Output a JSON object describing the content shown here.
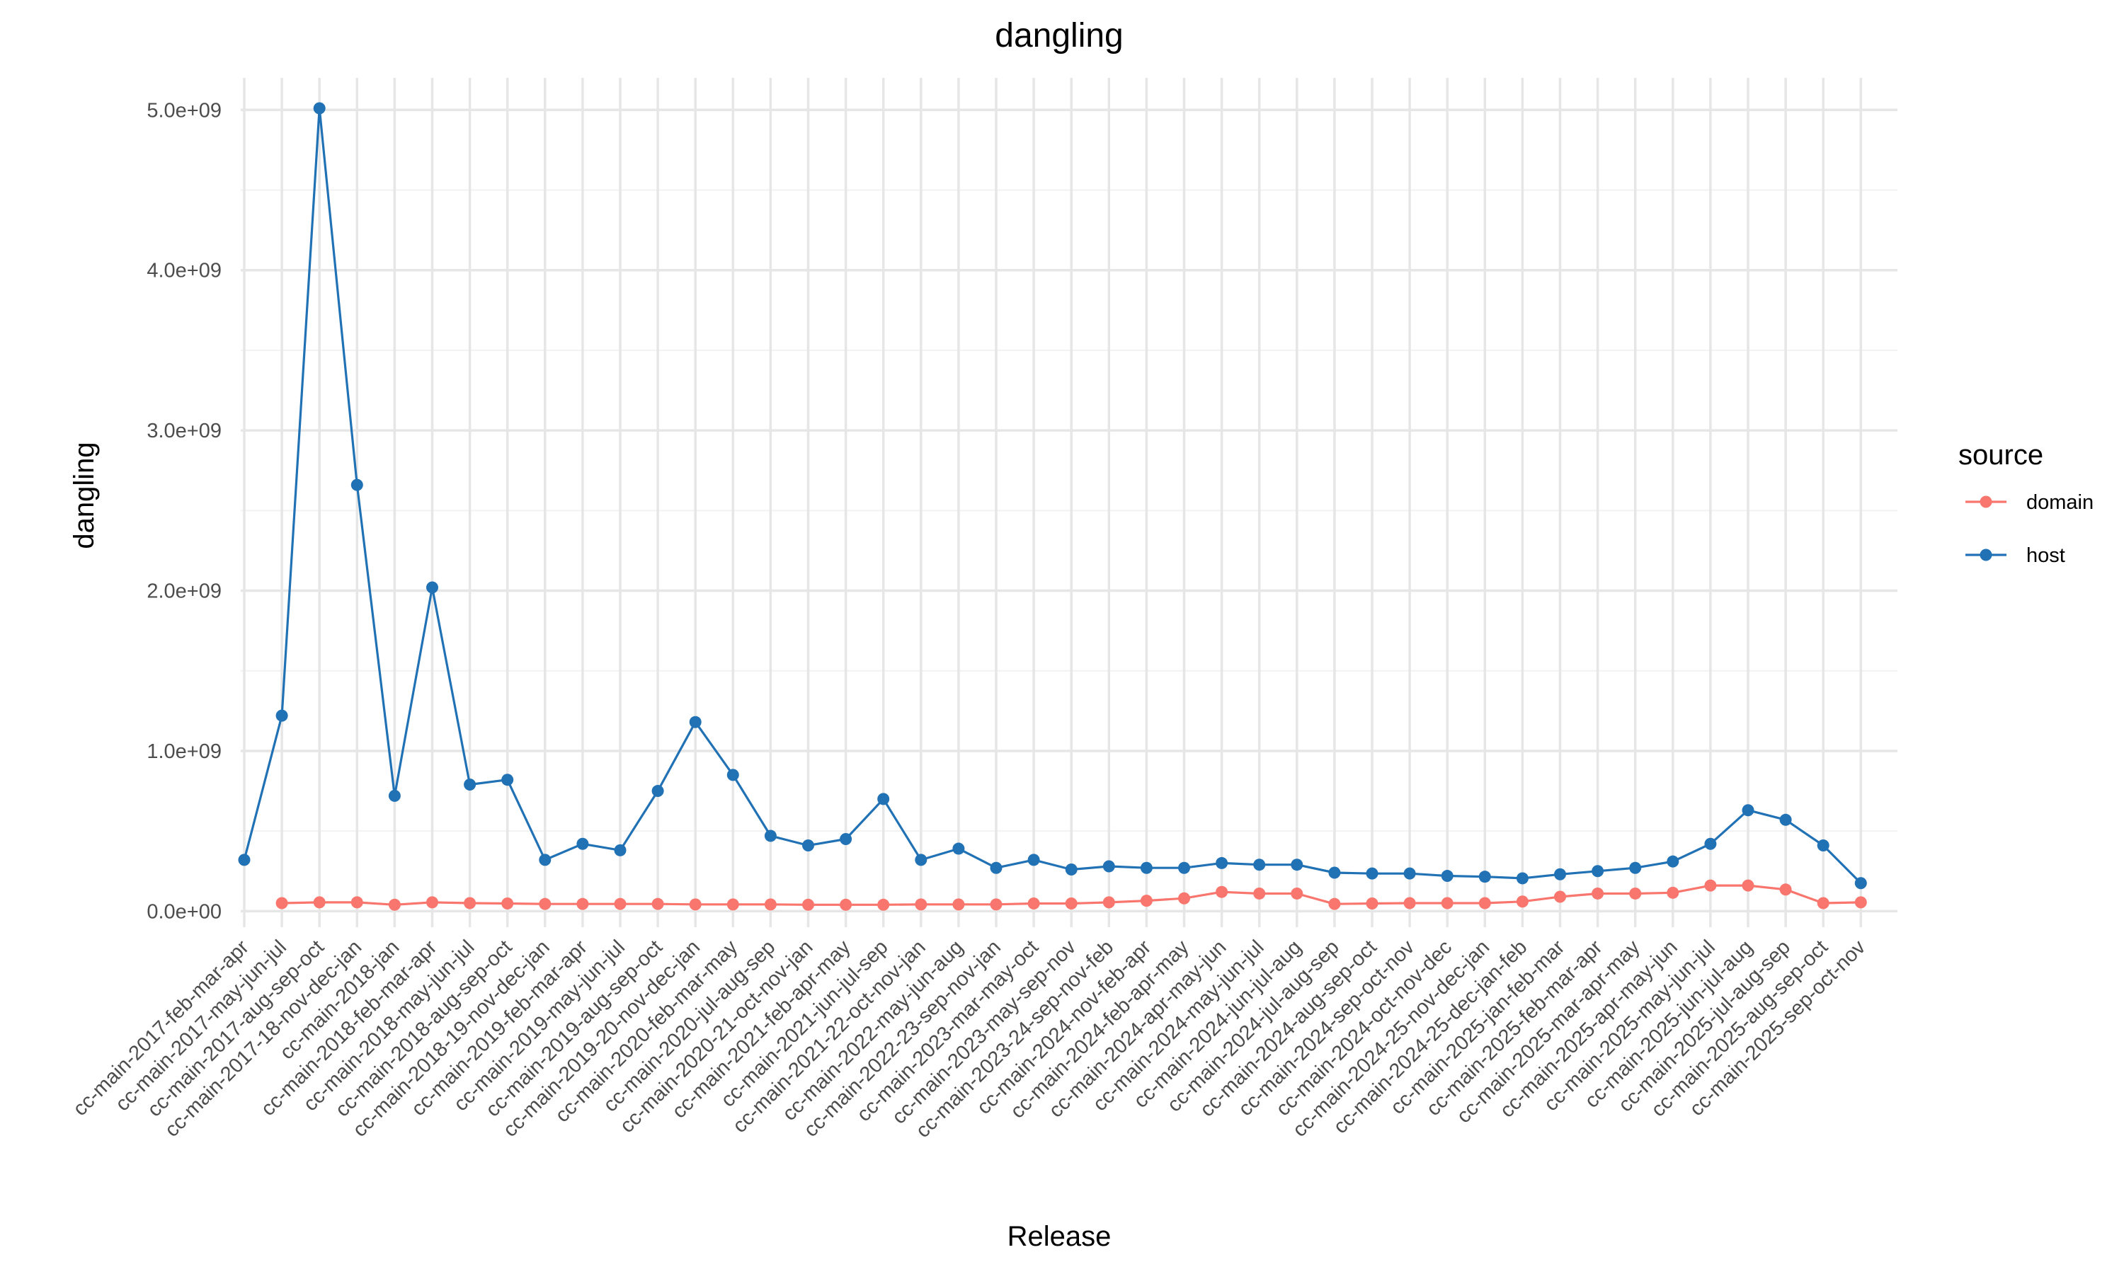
{
  "chart_data": {
    "type": "line",
    "title": "dangling",
    "xlabel": "Release",
    "ylabel": "dangling",
    "ylim": [
      -100000000,
      5200000000
    ],
    "yticks": [
      0,
      1000000000,
      2000000000,
      3000000000,
      4000000000,
      5000000000
    ],
    "ytick_labels": [
      "0.0e+00",
      "1.0e+09",
      "2.0e+09",
      "3.0e+09",
      "4.0e+09",
      "5.0e+09"
    ],
    "grid": true,
    "legend_title": "source",
    "legend_position": "right",
    "categories": [
      "cc-main-2017-feb-mar-apr",
      "cc-main-2017-may-jun-jul",
      "cc-main-2017-aug-sep-oct",
      "cc-main-2017-18-nov-dec-jan",
      "cc-main-2018-jan",
      "cc-main-2018-feb-mar-apr",
      "cc-main-2018-may-jun-jul",
      "cc-main-2018-aug-sep-oct",
      "cc-main-2018-19-nov-dec-jan",
      "cc-main-2019-feb-mar-apr",
      "cc-main-2019-may-jun-jul",
      "cc-main-2019-aug-sep-oct",
      "cc-main-2019-20-nov-dec-jan",
      "cc-main-2020-feb-mar-may",
      "cc-main-2020-jul-aug-sep",
      "cc-main-2020-21-oct-nov-jan",
      "cc-main-2021-feb-apr-may",
      "cc-main-2021-jun-jul-sep",
      "cc-main-2021-22-oct-nov-jan",
      "cc-main-2022-may-jun-aug",
      "cc-main-2022-23-sep-nov-jan",
      "cc-main-2023-mar-may-oct",
      "cc-main-2023-may-sep-nov",
      "cc-main-2023-24-sep-nov-feb",
      "cc-main-2024-nov-feb-apr",
      "cc-main-2024-feb-apr-may",
      "cc-main-2024-apr-may-jun",
      "cc-main-2024-may-jun-jul",
      "cc-main-2024-jun-jul-aug",
      "cc-main-2024-jul-aug-sep",
      "cc-main-2024-aug-sep-oct",
      "cc-main-2024-sep-oct-nov",
      "cc-main-2024-oct-nov-dec",
      "cc-main-2024-25-nov-dec-jan",
      "cc-main-2024-25-dec-jan-feb",
      "cc-main-2025-jan-feb-mar",
      "cc-main-2025-feb-mar-apr",
      "cc-main-2025-mar-apr-may",
      "cc-main-2025-apr-may-jun",
      "cc-main-2025-may-jun-jul",
      "cc-main-2025-jun-jul-aug",
      "cc-main-2025-jul-aug-sep",
      "cc-main-2025-aug-sep-oct",
      "cc-main-2025-sep-oct-nov"
    ],
    "series": [
      {
        "name": "domain",
        "color": "#F8766D",
        "values": [
          null,
          50000000,
          55000000,
          55000000,
          40000000,
          55000000,
          50000000,
          48000000,
          45000000,
          45000000,
          45000000,
          45000000,
          42000000,
          42000000,
          42000000,
          40000000,
          40000000,
          40000000,
          42000000,
          42000000,
          42000000,
          48000000,
          48000000,
          55000000,
          65000000,
          80000000,
          120000000,
          110000000,
          110000000,
          45000000,
          48000000,
          50000000,
          50000000,
          50000000,
          60000000,
          90000000,
          110000000,
          110000000,
          115000000,
          160000000,
          160000000,
          135000000,
          50000000,
          55000000
        ]
      },
      {
        "name": "host",
        "color": "#2171B5",
        "values": [
          320000000,
          1220000000,
          5010000000,
          2660000000,
          720000000,
          2020000000,
          790000000,
          820000000,
          320000000,
          420000000,
          380000000,
          750000000,
          1180000000,
          850000000,
          470000000,
          410000000,
          450000000,
          700000000,
          320000000,
          390000000,
          270000000,
          320000000,
          260000000,
          280000000,
          270000000,
          270000000,
          300000000,
          290000000,
          290000000,
          240000000,
          235000000,
          235000000,
          220000000,
          215000000,
          205000000,
          230000000,
          250000000,
          270000000,
          310000000,
          420000000,
          630000000,
          570000000,
          410000000,
          175000000
        ]
      }
    ]
  }
}
